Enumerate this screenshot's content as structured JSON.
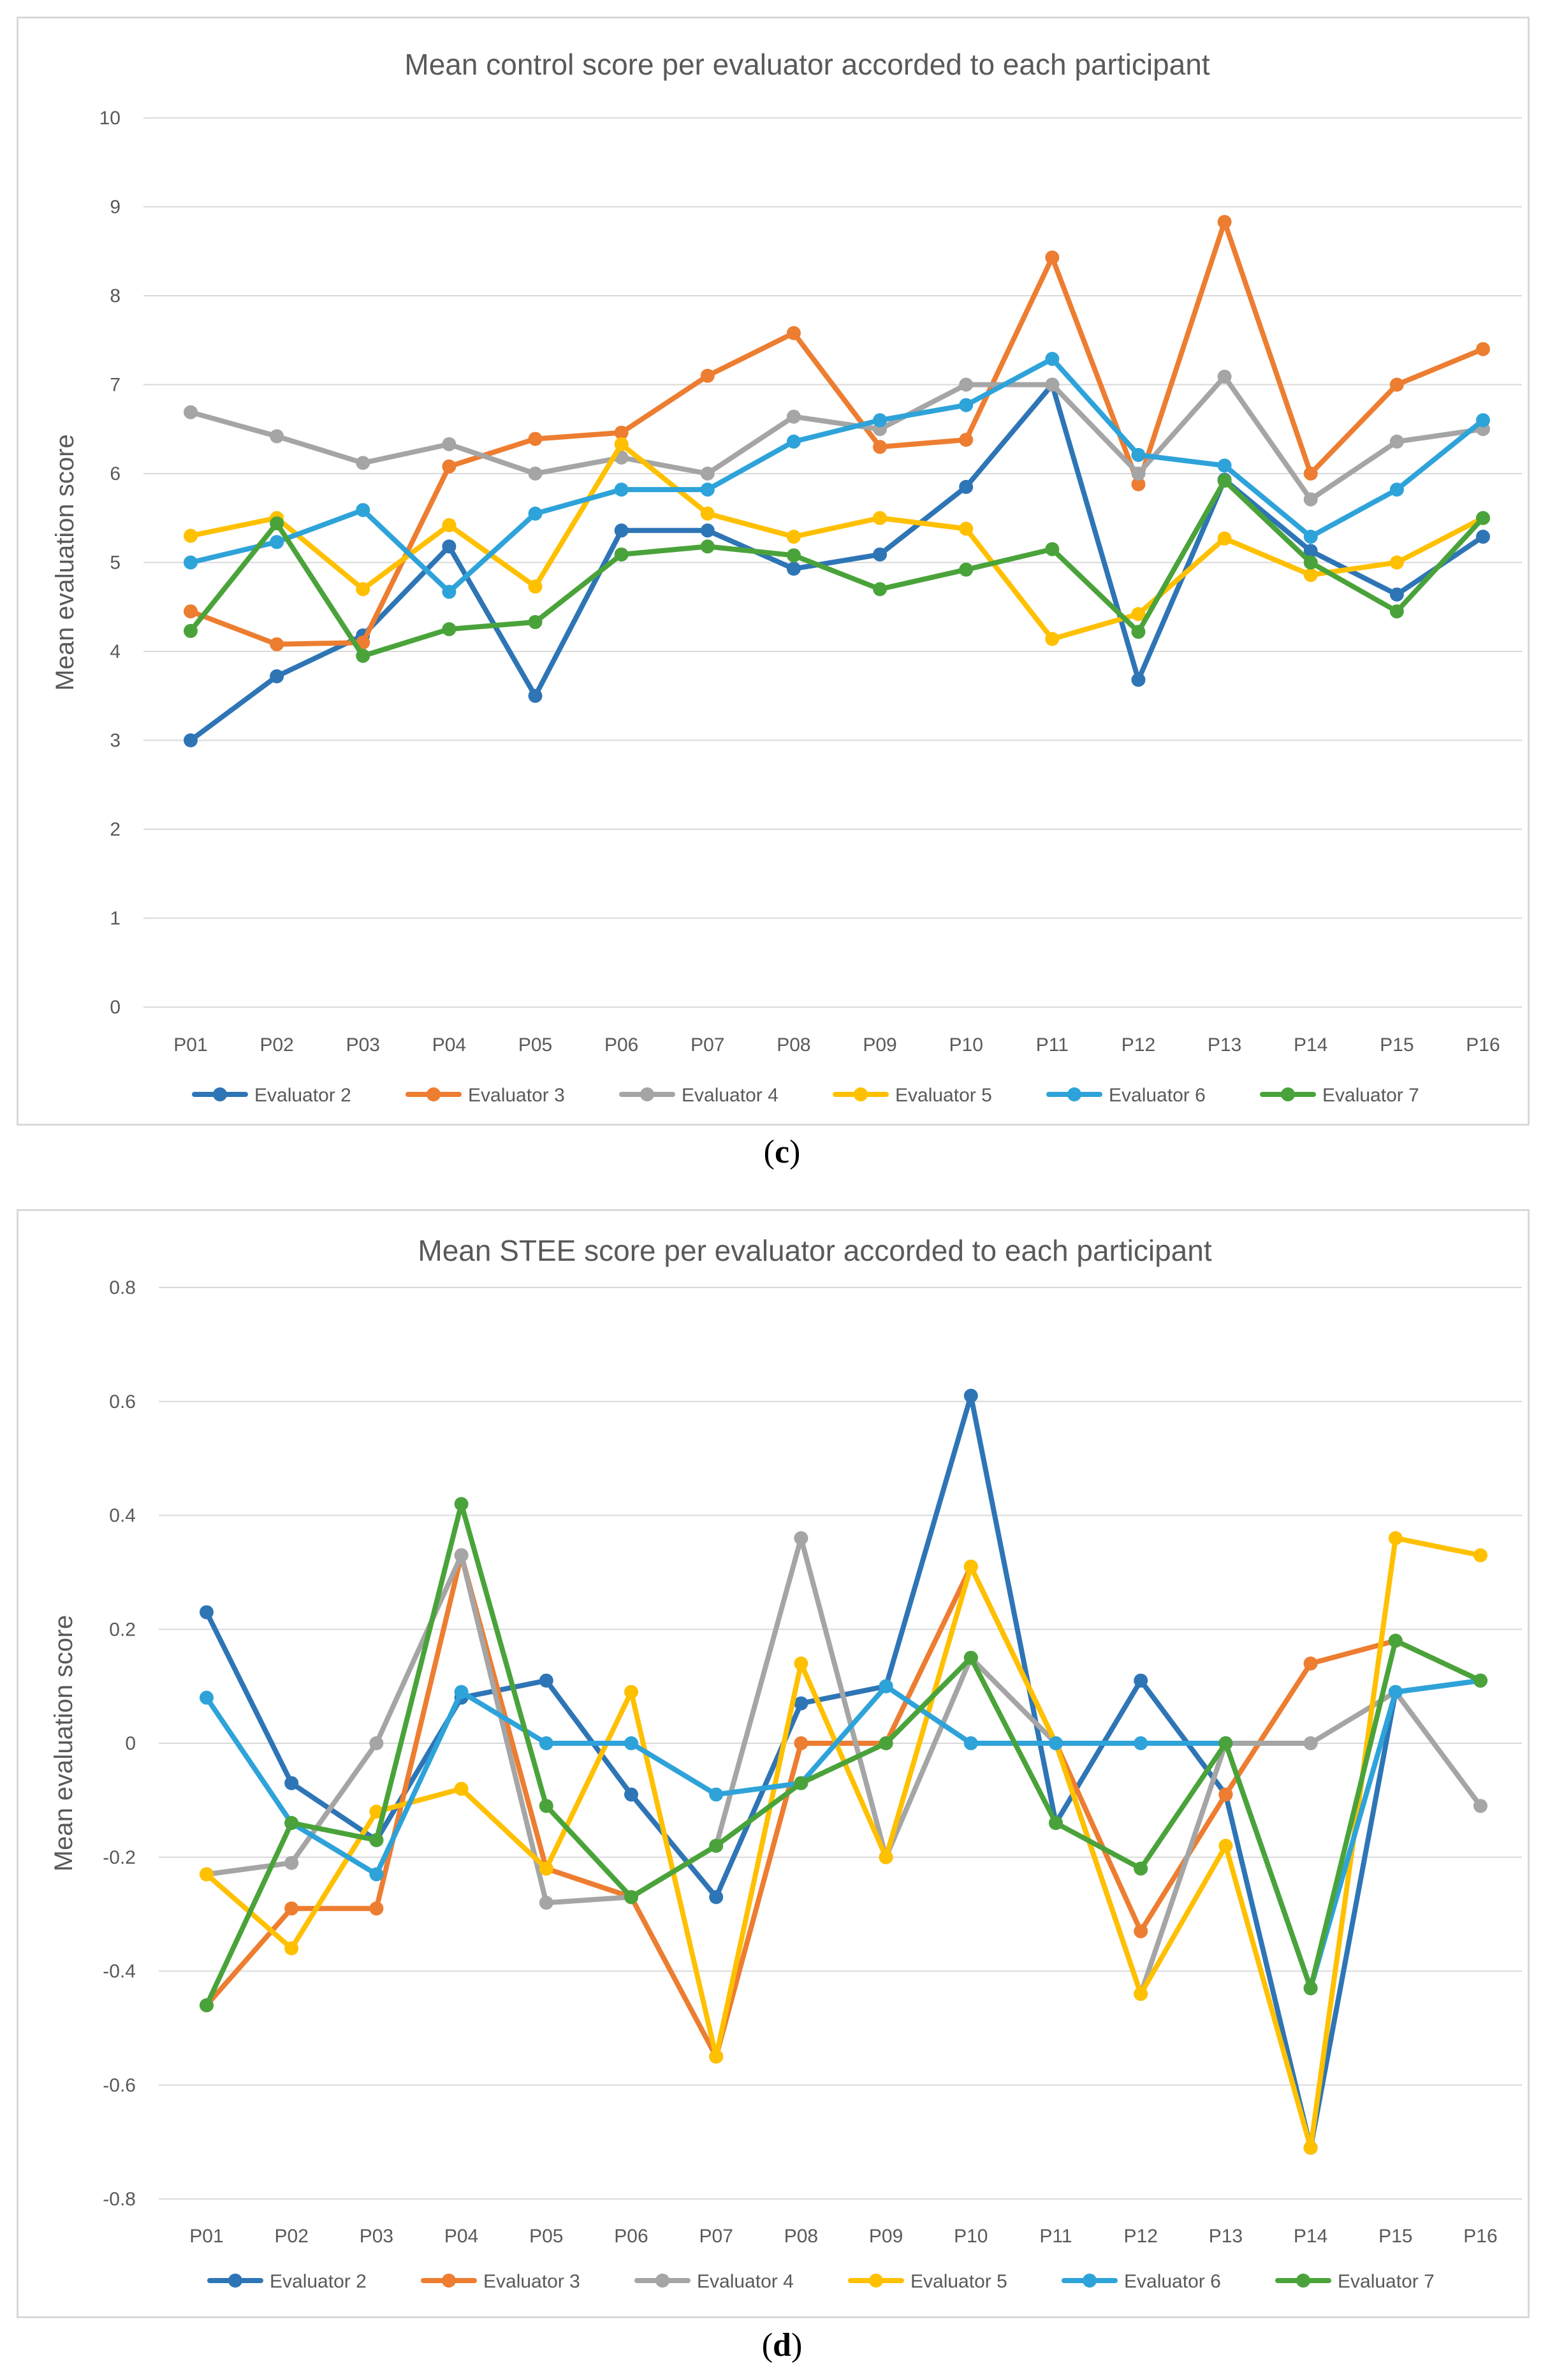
{
  "chart_data": [
    {
      "id": "c",
      "type": "line",
      "title": "Mean control score per evaluator accorded to each participant",
      "xlabel": "",
      "ylabel": "Mean evaluation score",
      "ylim": [
        0,
        10
      ],
      "yticks": [
        0,
        1,
        2,
        3,
        4,
        5,
        6,
        7,
        8,
        9,
        10
      ],
      "ytick_labels": [
        "0",
        "1",
        "2",
        "3",
        "4",
        "5",
        "6",
        "7",
        "8",
        "9",
        "10"
      ],
      "grid": true,
      "legend": "bottom",
      "categories": [
        "P01",
        "P02",
        "P03",
        "P04",
        "P05",
        "P06",
        "P07",
        "P08",
        "P09",
        "P10",
        "P11",
        "P12",
        "P13",
        "P14",
        "P15",
        "P16"
      ],
      "series": [
        {
          "name": "Evaluator 2",
          "color": "#2e75b6",
          "values": [
            3.0,
            3.72,
            4.18,
            5.18,
            3.5,
            5.36,
            5.36,
            4.93,
            5.09,
            5.85,
            7.0,
            3.68,
            5.93,
            5.13,
            4.64,
            5.29
          ]
        },
        {
          "name": "Evaluator 3",
          "color": "#ed7d31",
          "values": [
            4.45,
            4.08,
            4.1,
            6.08,
            6.39,
            6.46,
            7.1,
            7.58,
            6.3,
            6.38,
            8.43,
            5.88,
            8.83,
            6.0,
            7.0,
            7.4
          ]
        },
        {
          "name": "Evaluator 4",
          "color": "#a5a5a5",
          "values": [
            6.69,
            6.42,
            6.12,
            6.33,
            6.0,
            6.18,
            6.0,
            6.64,
            6.5,
            7.0,
            7.0,
            6.0,
            7.09,
            5.71,
            6.36,
            6.5
          ]
        },
        {
          "name": "Evaluator 5",
          "color": "#ffc000",
          "values": [
            5.3,
            5.5,
            4.7,
            5.42,
            4.73,
            6.33,
            5.55,
            5.29,
            5.5,
            5.38,
            4.14,
            4.42,
            5.27,
            4.86,
            5.0,
            5.5
          ]
        },
        {
          "name": "Evaluator 6",
          "color": "#2ea3d9",
          "values": [
            5.0,
            5.23,
            5.59,
            4.67,
            5.55,
            5.82,
            5.82,
            6.36,
            6.6,
            6.77,
            7.29,
            6.21,
            6.09,
            5.29,
            5.82,
            6.6
          ]
        },
        {
          "name": "Evaluator 7",
          "color": "#4aa33a",
          "values": [
            4.23,
            5.44,
            3.95,
            4.25,
            4.33,
            5.09,
            5.18,
            5.08,
            4.7,
            4.92,
            5.15,
            4.22,
            5.92,
            5.0,
            4.45,
            5.5
          ]
        }
      ]
    },
    {
      "id": "d",
      "type": "line",
      "title": "Mean STEE score per evaluator accorded to each participant",
      "xlabel": "",
      "ylabel": "Mean evaluation score",
      "ylim": [
        -0.8,
        0.8
      ],
      "yticks": [
        -0.8,
        -0.6,
        -0.4,
        -0.2,
        0,
        0.2,
        0.4,
        0.6,
        0.8
      ],
      "ytick_labels": [
        "-0.8",
        "-0.6",
        "-0.4",
        "-0.2",
        "0",
        "0.2",
        "0.4",
        "0.6",
        "0.8"
      ],
      "grid": true,
      "legend": "bottom",
      "categories": [
        "P01",
        "P02",
        "P03",
        "P04",
        "P05",
        "P06",
        "P07",
        "P08",
        "P09",
        "P10",
        "P11",
        "P12",
        "P13",
        "P14",
        "P15",
        "P16"
      ],
      "series": [
        {
          "name": "Evaluator 2",
          "color": "#2e75b6",
          "values": [
            0.23,
            -0.07,
            -0.17,
            0.08,
            0.11,
            -0.09,
            -0.27,
            0.07,
            0.1,
            0.61,
            -0.14,
            0.11,
            -0.09,
            -0.71,
            0.09,
            0.11
          ]
        },
        {
          "name": "Evaluator 3",
          "color": "#ed7d31",
          "values": [
            -0.46,
            -0.29,
            -0.29,
            0.33,
            -0.22,
            -0.27,
            -0.55,
            0.0,
            0.0,
            0.31,
            0.0,
            -0.33,
            -0.09,
            0.14,
            0.18,
            0.11
          ]
        },
        {
          "name": "Evaluator 4",
          "color": "#a5a5a5",
          "values": [
            -0.23,
            -0.21,
            0.0,
            0.33,
            -0.28,
            -0.27,
            -0.18,
            0.36,
            -0.2,
            0.15,
            0.0,
            -0.44,
            0.0,
            0.0,
            0.09,
            -0.11
          ]
        },
        {
          "name": "Evaluator 5",
          "color": "#ffc000",
          "values": [
            -0.23,
            -0.36,
            -0.12,
            -0.08,
            -0.22,
            0.09,
            -0.55,
            0.14,
            -0.2,
            0.31,
            0.0,
            -0.44,
            -0.18,
            -0.71,
            0.36,
            0.33
          ]
        },
        {
          "name": "Evaluator 6",
          "color": "#2ea3d9",
          "values": [
            0.08,
            -0.14,
            -0.23,
            0.09,
            0.0,
            0.0,
            -0.09,
            -0.07,
            0.1,
            0.0,
            0.0,
            0.0,
            0.0,
            -0.43,
            0.09,
            0.11
          ]
        },
        {
          "name": "Evaluator 7",
          "color": "#4aa33a",
          "values": [
            -0.46,
            -0.14,
            -0.17,
            0.42,
            -0.11,
            -0.27,
            -0.18,
            -0.07,
            0.0,
            0.15,
            -0.14,
            -0.22,
            0.0,
            -0.43,
            0.18,
            0.11
          ]
        }
      ]
    }
  ],
  "captions": {
    "c": "c",
    "d": "d"
  }
}
